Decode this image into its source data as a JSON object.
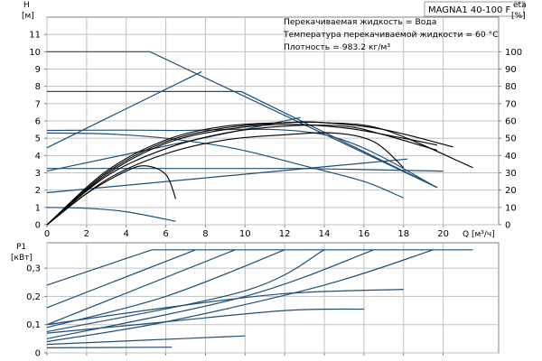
{
  "chart_data": [
    {
      "type": "line",
      "panel": "head",
      "model_label": "MAGNA1 40-100 F",
      "info_lines": [
        "Перекачиваемая жидкость = Вода",
        "Температура перекачиваемой жидкости = 60 °C",
        "Плотность = 983.2 кг/м³"
      ],
      "xlabel": "Q [м³/ч]",
      "ylabel_left": [
        "H",
        "[м]"
      ],
      "ylabel_right": [
        "eta",
        "[%]"
      ],
      "xlim": [
        0,
        22.8
      ],
      "ylim": [
        0,
        12
      ],
      "y2lim": [
        0,
        120
      ],
      "xticks": [
        0,
        2,
        4,
        6,
        8,
        10,
        12,
        14,
        16,
        18,
        20
      ],
      "yticks": [
        0,
        1,
        2,
        3,
        4,
        5,
        6,
        7,
        8,
        9,
        10,
        11
      ],
      "y2ticks": [
        0,
        10,
        20,
        30,
        40,
        50,
        60,
        70,
        80,
        90,
        100
      ],
      "grid": true,
      "colors": {
        "pump": "#1f4e79",
        "efficiency": "#000000",
        "grid": "#c0c0c0",
        "axis": "#808080"
      },
      "pump_curves": [
        [
          [
            0,
            10
          ],
          [
            5.2,
            10
          ],
          [
            19.7,
            2.15
          ]
        ],
        [
          [
            0,
            7.7
          ],
          [
            9.8,
            7.7
          ],
          [
            19.7,
            2.15
          ]
        ],
        [
          [
            0,
            5.45
          ],
          [
            6,
            5.45
          ],
          [
            14,
            5.2
          ],
          [
            19.7,
            2.15
          ]
        ],
        [
          [
            0,
            3.25
          ],
          [
            13,
            3.25
          ],
          [
            20,
            3.1
          ]
        ],
        [
          [
            0,
            5.3
          ],
          [
            3,
            5.25
          ],
          [
            6,
            5
          ],
          [
            9.5,
            4.4
          ],
          [
            13,
            3.4
          ],
          [
            16,
            2.5
          ],
          [
            18,
            1.55
          ]
        ],
        [
          [
            0,
            1.0
          ],
          [
            2,
            0.95
          ],
          [
            4,
            0.75
          ],
          [
            6.5,
            0.2
          ]
        ],
        [
          [
            0,
            4.45
          ],
          [
            7.8,
            8.85
          ]
        ],
        [
          [
            0,
            3.1
          ],
          [
            12.8,
            6.2
          ]
        ],
        [
          [
            0,
            1.85
          ],
          [
            18.2,
            3.8
          ]
        ]
      ],
      "efficiency_curves": [
        [
          [
            0,
            0
          ],
          [
            2,
            18
          ],
          [
            4,
            31
          ],
          [
            5,
            34
          ],
          [
            6,
            29
          ],
          [
            6.5,
            15
          ]
        ],
        [
          [
            0,
            0
          ],
          [
            3,
            26
          ],
          [
            6,
            41
          ],
          [
            9,
            49
          ],
          [
            12,
            52
          ],
          [
            14.5,
            53
          ],
          [
            16.5,
            48
          ],
          [
            18,
            33
          ]
        ],
        [
          [
            0,
            0
          ],
          [
            3,
            28
          ],
          [
            6,
            44
          ],
          [
            9,
            53
          ],
          [
            12,
            57
          ],
          [
            15,
            57
          ],
          [
            17,
            52
          ],
          [
            19.7,
            43
          ]
        ],
        [
          [
            0,
            0
          ],
          [
            3,
            29
          ],
          [
            6,
            47
          ],
          [
            9,
            55
          ],
          [
            12,
            58
          ],
          [
            15,
            56
          ],
          [
            18,
            50
          ],
          [
            19.7,
            46
          ]
        ],
        [
          [
            0,
            0
          ],
          [
            3,
            30
          ],
          [
            6,
            48
          ],
          [
            9,
            56
          ],
          [
            12,
            59
          ],
          [
            14,
            59
          ],
          [
            17,
            55
          ],
          [
            20.5,
            45
          ]
        ],
        [
          [
            0,
            0
          ],
          [
            3,
            31
          ],
          [
            6,
            49
          ],
          [
            9,
            57
          ],
          [
            12,
            59
          ],
          [
            14,
            59
          ],
          [
            17,
            55
          ],
          [
            21.5,
            33
          ]
        ]
      ]
    },
    {
      "type": "line",
      "panel": "power",
      "ylabel_left": [
        "P1",
        "[кВт]"
      ],
      "xlim": [
        0,
        22.8
      ],
      "ylim": [
        0,
        0.39
      ],
      "xticks": [
        0,
        2,
        4,
        6,
        8,
        10,
        12,
        14,
        16,
        18,
        20
      ],
      "yticks": [
        0,
        0.1,
        0.2,
        0.3
      ],
      "ytick_labels": [
        "0",
        "0,1",
        "0,2",
        "0,3"
      ],
      "grid": true,
      "power_curves": [
        [
          [
            0,
            0.24
          ],
          [
            5.3,
            0.365
          ],
          [
            21.5,
            0.365
          ]
        ],
        [
          [
            0,
            0.16
          ],
          [
            7.5,
            0.365
          ]
        ],
        [
          [
            0,
            0.1
          ],
          [
            9.5,
            0.365
          ]
        ],
        [
          [
            0,
            0.09
          ],
          [
            6,
            0.2
          ],
          [
            12,
            0.365
          ]
        ],
        [
          [
            0,
            0.075
          ],
          [
            10,
            0.22
          ],
          [
            14,
            0.365
          ]
        ],
        [
          [
            0,
            0.05
          ],
          [
            10,
            0.2
          ],
          [
            16.5,
            0.365
          ]
        ],
        [
          [
            0,
            0.04
          ],
          [
            6,
            0.11
          ],
          [
            14,
            0.24
          ],
          [
            19.5,
            0.365
          ]
        ],
        [
          [
            0,
            0.1
          ],
          [
            6,
            0.16
          ],
          [
            12,
            0.21
          ],
          [
            18,
            0.225
          ]
        ],
        [
          [
            0,
            0.07
          ],
          [
            6,
            0.11
          ],
          [
            12,
            0.15
          ],
          [
            16,
            0.155
          ]
        ],
        [
          [
            0,
            0.03
          ],
          [
            5,
            0.045
          ],
          [
            10,
            0.06
          ]
        ],
        [
          [
            0,
            0.018
          ],
          [
            6.3,
            0.02
          ]
        ]
      ]
    }
  ]
}
